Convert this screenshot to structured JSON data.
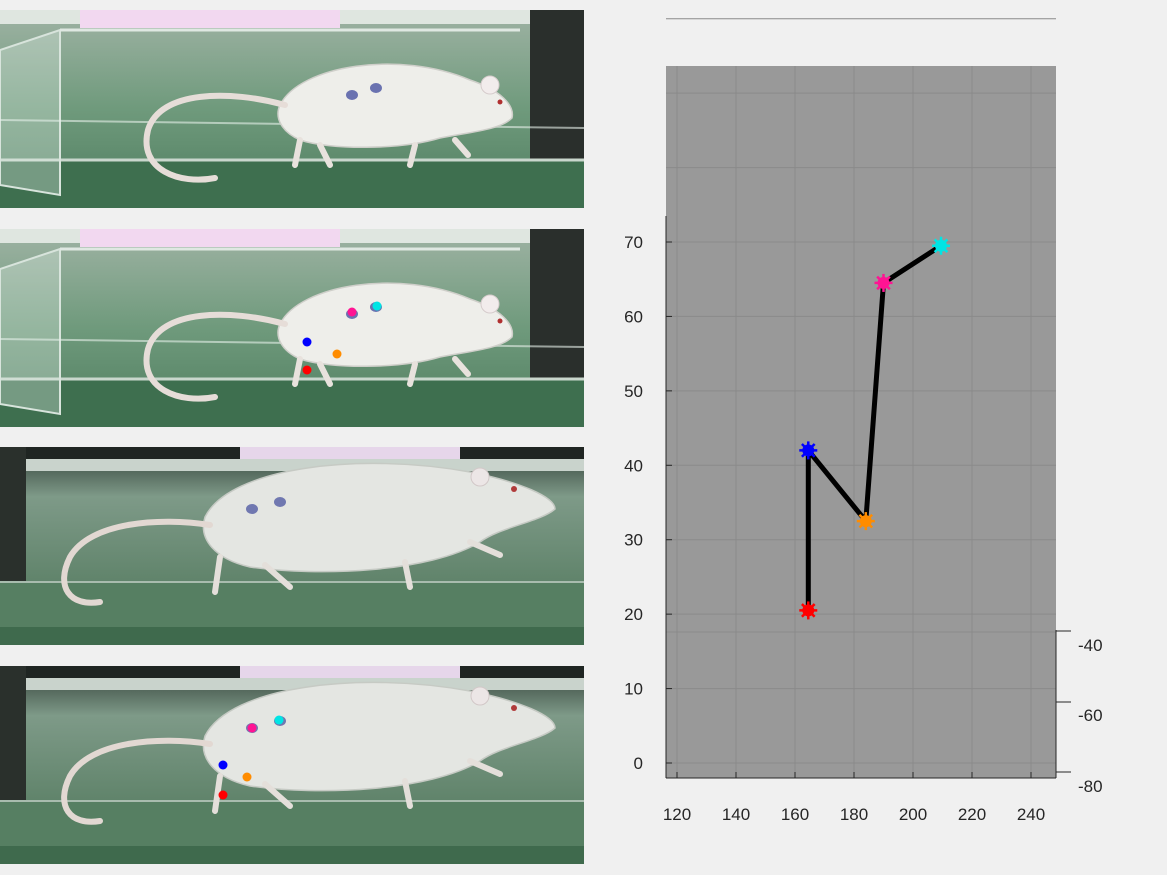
{
  "panels": [
    {
      "id": "p1",
      "scene": "cage",
      "annotated": false
    },
    {
      "id": "p2",
      "scene": "cage",
      "annotated": true
    },
    {
      "id": "p3",
      "scene": "treadmill",
      "annotated": false
    },
    {
      "id": "p4",
      "scene": "treadmill",
      "annotated": true
    }
  ],
  "marker_colors": {
    "red": "#ff0000",
    "blue": "#0000ff",
    "orange": "#ff8c00",
    "magenta": "#ff1493",
    "cyan": "#00e5e5"
  },
  "chart_data": {
    "type": "line",
    "title": "",
    "xlabel": "",
    "ylabel": "",
    "background_color": "#999999",
    "line_color": "#000000",
    "grid": true,
    "xlim": [
      116,
      248
    ],
    "ylim": [
      -2,
      73
    ],
    "xticks": [
      120,
      140,
      160,
      180,
      200,
      220,
      240
    ],
    "yticks": [
      0,
      10,
      20,
      30,
      40,
      50,
      60,
      70
    ],
    "zticks": [
      -40,
      -60,
      -80
    ],
    "points": [
      {
        "name": "red",
        "x": 164.5,
        "y": 20.5,
        "color": "#ff0000"
      },
      {
        "name": "blue",
        "x": 164.5,
        "y": 42,
        "color": "#0000ff"
      },
      {
        "name": "orange",
        "x": 184,
        "y": 32.5,
        "color": "#ff8c00"
      },
      {
        "name": "magenta",
        "x": 190,
        "y": 64.5,
        "color": "#ff1493"
      },
      {
        "name": "cyan",
        "x": 209.5,
        "y": 69.5,
        "color": "#00e5e5"
      }
    ]
  }
}
